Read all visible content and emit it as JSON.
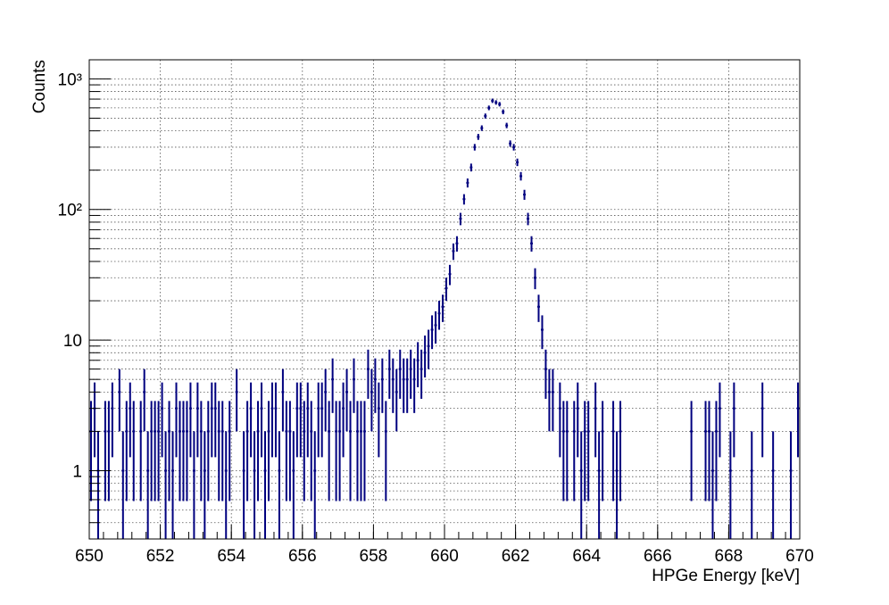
{
  "chart_data": {
    "type": "scatter",
    "title": "",
    "xlabel": "HPGe Energy [keV]",
    "ylabel": "Counts",
    "xlim": [
      650,
      670
    ],
    "ylim": [
      0.3,
      1400
    ],
    "y_scale": "log",
    "grid": true,
    "legend": "none",
    "x_ticks": [
      "650",
      "652",
      "654",
      "656",
      "658",
      "660",
      "662",
      "664",
      "666",
      "668",
      "670"
    ],
    "x_tick_values": [
      650,
      652,
      654,
      656,
      658,
      660,
      662,
      664,
      666,
      668,
      670
    ],
    "y_ticks": [
      "1",
      "10",
      "10²",
      "10³"
    ],
    "y_tick_values": [
      1,
      10,
      100,
      1000
    ],
    "bin_width": 0.1,
    "series": [
      {
        "color": "#00007f",
        "x": [
          650.05,
          650.15,
          650.25,
          650.35,
          650.45,
          650.55,
          650.65,
          650.75,
          650.85,
          650.95,
          651.05,
          651.15,
          651.25,
          651.35,
          651.45,
          651.55,
          651.65,
          651.75,
          651.85,
          651.95,
          652.05,
          652.15,
          652.25,
          652.35,
          652.45,
          652.55,
          652.65,
          652.75,
          652.85,
          652.95,
          653.05,
          653.15,
          653.25,
          653.35,
          653.45,
          653.55,
          653.65,
          653.75,
          653.85,
          653.95,
          654.05,
          654.15,
          654.25,
          654.35,
          654.45,
          654.55,
          654.65,
          654.75,
          654.85,
          654.95,
          655.05,
          655.15,
          655.25,
          655.35,
          655.45,
          655.55,
          655.65,
          655.75,
          655.85,
          655.95,
          656.05,
          656.15,
          656.25,
          656.35,
          656.45,
          656.55,
          656.65,
          656.75,
          656.85,
          656.95,
          657.05,
          657.15,
          657.25,
          657.35,
          657.45,
          657.55,
          657.65,
          657.75,
          657.85,
          657.95,
          658.05,
          658.15,
          658.25,
          658.35,
          658.45,
          658.55,
          658.65,
          658.75,
          658.85,
          658.95,
          659.05,
          659.15,
          659.25,
          659.35,
          659.45,
          659.55,
          659.65,
          659.75,
          659.85,
          659.95,
          660.05,
          660.15,
          660.25,
          660.35,
          660.45,
          660.55,
          660.65,
          660.75,
          660.85,
          660.95,
          661.05,
          661.15,
          661.25,
          661.35,
          661.45,
          661.55,
          661.65,
          661.75,
          661.85,
          661.95,
          662.05,
          662.15,
          662.25,
          662.35,
          662.45,
          662.55,
          662.65,
          662.75,
          662.85,
          662.95,
          663.05,
          663.15,
          663.25,
          663.35,
          663.45,
          663.55,
          663.65,
          663.75,
          663.85,
          663.95,
          664.05,
          664.15,
          664.25,
          664.35,
          664.45,
          664.55,
          664.65,
          664.75,
          664.85,
          664.95,
          665.05,
          665.15,
          665.25,
          665.35,
          665.45,
          665.55,
          665.65,
          665.75,
          665.85,
          665.95,
          666.05,
          666.15,
          666.25,
          666.35,
          666.45,
          666.55,
          666.65,
          666.75,
          666.85,
          666.95,
          667.05,
          667.15,
          667.25,
          667.35,
          667.45,
          667.55,
          667.65,
          667.75,
          667.85,
          667.95,
          668.05,
          668.15,
          668.25,
          668.35,
          668.45,
          668.55,
          668.65,
          668.75,
          668.85,
          668.95,
          669.05,
          669.15,
          669.25,
          669.35,
          669.45,
          669.55,
          669.65,
          669.75,
          669.85,
          669.95
        ],
        "y": [
          2,
          3,
          1,
          0,
          2,
          2,
          3,
          0,
          4,
          1,
          2,
          3,
          2,
          0,
          2,
          4,
          1,
          2,
          2,
          2,
          3,
          1,
          2,
          1,
          3,
          2,
          2,
          2,
          3,
          1,
          3,
          2,
          1,
          2,
          3,
          3,
          2,
          2,
          1,
          2,
          0,
          4,
          0,
          1,
          2,
          3,
          1,
          2,
          3,
          1,
          2,
          3,
          3,
          1,
          4,
          2,
          2,
          1,
          3,
          3,
          2,
          3,
          2,
          1,
          3,
          3,
          4,
          2,
          5,
          2,
          2,
          3,
          4,
          2,
          5,
          2,
          2,
          2,
          6,
          4,
          5,
          3,
          5,
          2,
          6,
          5,
          4,
          6,
          5,
          5,
          6,
          5,
          7,
          6,
          8,
          9,
          12,
          13,
          16,
          18,
          25,
          32,
          48,
          55,
          85,
          120,
          160,
          210,
          300,
          360,
          420,
          520,
          600,
          680,
          660,
          640,
          560,
          440,
          320,
          300,
          230,
          180,
          130,
          85,
          55,
          30,
          18,
          12,
          6,
          4,
          4,
          0,
          3,
          2,
          2,
          0,
          2,
          3,
          1,
          2,
          2,
          0,
          3,
          1,
          2,
          0,
          0,
          2,
          1,
          2,
          0,
          0,
          0,
          0,
          0,
          0,
          0,
          0,
          0,
          0,
          0,
          0,
          0,
          0,
          0,
          0,
          0,
          0,
          0,
          2,
          0,
          0,
          0,
          2,
          2,
          1,
          2,
          3,
          0,
          0,
          1,
          3,
          0,
          0,
          0,
          0,
          1,
          0,
          0,
          3,
          0,
          0,
          1,
          0,
          0,
          0,
          0,
          1,
          0,
          3
        ]
      }
    ]
  }
}
